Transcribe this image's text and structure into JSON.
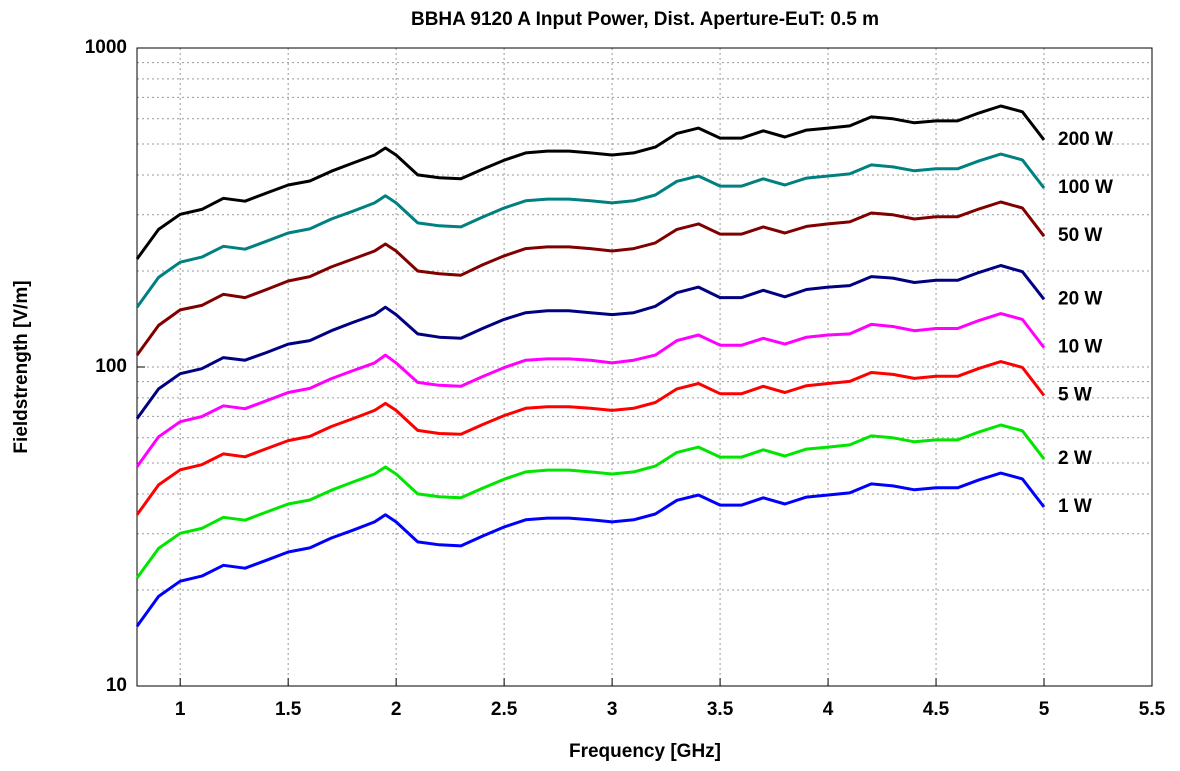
{
  "chart_data": {
    "type": "line",
    "title": "BBHA 9120 A Input Power, Dist. Aperture-EuT: 0.5 m",
    "x_label": "Frequency [GHz]",
    "y_label": "Fieldstrength [V/m]",
    "log_y": true,
    "grid": true,
    "minor_grid": true,
    "legend": "end-of-line",
    "xlim": [
      0.8,
      5.5
    ],
    "xticks": [
      1,
      1.5,
      2,
      2.5,
      3,
      3.5,
      4,
      4.5,
      5,
      5.5
    ],
    "ylim": [
      10,
      1000
    ],
    "yticks": [
      10,
      100,
      1000
    ],
    "x": [
      0.8,
      0.9,
      1,
      1.1,
      1.2,
      1.3,
      1.4,
      1.5,
      1.6,
      1.7,
      1.8,
      1.9,
      1.95,
      2,
      2.1,
      2.2,
      2.3,
      2.4,
      2.5,
      2.6,
      2.7,
      2.8,
      2.9,
      3,
      3.1,
      3.2,
      3.3,
      3.4,
      3.5,
      3.6,
      3.7,
      3.8,
      3.9,
      4,
      4.1,
      4.2,
      4.3,
      4.4,
      4.5,
      4.6,
      4.7,
      4.8,
      4.9,
      5
    ],
    "series": [
      {
        "name": "200 W",
        "color": "#000000",
        "values": [
          218,
          270,
          301,
          312,
          338,
          331,
          351,
          372,
          383,
          411,
          436,
          462,
          486,
          462,
          400,
          392,
          389,
          417,
          445,
          469,
          475,
          475,
          469,
          462,
          469,
          489,
          540,
          561,
          522,
          522,
          550,
          526,
          553,
          561,
          570,
          608,
          600,
          583,
          591,
          591,
          626,
          658,
          631,
          515
        ]
      },
      {
        "name": "100 W",
        "color": "#008080",
        "values": [
          154,
          191,
          213,
          221,
          239,
          234,
          248,
          263,
          271,
          291,
          308,
          327,
          344,
          327,
          283,
          277,
          275,
          295,
          315,
          332,
          336,
          336,
          332,
          327,
          332,
          346,
          382,
          397,
          369,
          369,
          389,
          372,
          391,
          397,
          403,
          430,
          424,
          412,
          418,
          418,
          443,
          465,
          446,
          364
        ]
      },
      {
        "name": "50 W",
        "color": "#800000",
        "values": [
          109,
          135,
          151,
          156,
          169,
          165,
          175,
          186,
          192,
          206,
          218,
          231,
          243,
          231,
          200,
          196,
          194,
          209,
          223,
          235,
          238,
          238,
          235,
          231,
          235,
          245,
          270,
          281,
          261,
          261,
          275,
          263,
          276,
          281,
          285,
          304,
          300,
          291,
          296,
          296,
          313,
          329,
          315,
          257
        ]
      },
      {
        "name": "20 W",
        "color": "#000080",
        "values": [
          68.9,
          85.4,
          95.3,
          98.8,
          107,
          105,
          111,
          118,
          121,
          130,
          138,
          146,
          154,
          146,
          127,
          124,
          123,
          132,
          141,
          148,
          150,
          150,
          148,
          146,
          148,
          155,
          171,
          178,
          165,
          165,
          174,
          166,
          175,
          178,
          180,
          192,
          190,
          184,
          187,
          187,
          198,
          208,
          199,
          163
        ]
      },
      {
        "name": "10 W",
        "color": "#ff00ff",
        "values": [
          48.7,
          60.4,
          67.4,
          69.9,
          75.6,
          74.0,
          78.4,
          83.2,
          85.7,
          92.0,
          97.4,
          103,
          109,
          103,
          89.5,
          87.6,
          87.0,
          93.3,
          99.6,
          105,
          106,
          106,
          105,
          103,
          105,
          109,
          121,
          126,
          117,
          117,
          123,
          118,
          124,
          126,
          127,
          136,
          134,
          130,
          132,
          132,
          140,
          147,
          141,
          115
        ]
      },
      {
        "name": "5 W",
        "color": "#ff0000",
        "values": [
          34.4,
          42.7,
          47.6,
          49.4,
          53.4,
          52.3,
          55.5,
          58.8,
          60.6,
          65.1,
          68.9,
          73.1,
          76.9,
          73.1,
          63.3,
          61.9,
          61.5,
          66.0,
          70.4,
          74.2,
          75.1,
          75.1,
          74.2,
          73.1,
          74.2,
          77.4,
          85.4,
          88.8,
          82.5,
          82.5,
          87.0,
          83.2,
          87.4,
          88.8,
          90.1,
          96.1,
          94.8,
          92.1,
          93.5,
          93.5,
          99.1,
          104,
          99.7,
          81.4
        ]
      },
      {
        "name": "2 W",
        "color": "#00e600",
        "values": [
          21.8,
          27.0,
          30.1,
          31.2,
          33.8,
          33.1,
          35.1,
          37.2,
          38.3,
          41.1,
          43.6,
          46.2,
          48.6,
          46.2,
          40.0,
          39.2,
          38.9,
          41.7,
          44.5,
          46.9,
          47.5,
          47.5,
          46.9,
          46.2,
          46.9,
          48.9,
          54.0,
          56.1,
          52.2,
          52.2,
          55.0,
          52.6,
          55.3,
          56.1,
          57.0,
          60.8,
          60.0,
          58.3,
          59.1,
          59.1,
          62.6,
          65.8,
          63.1,
          51.5
        ]
      },
      {
        "name": "1 W",
        "color": "#0000ff",
        "values": [
          15.4,
          19.1,
          21.3,
          22.1,
          23.9,
          23.4,
          24.8,
          26.3,
          27.1,
          29.1,
          30.8,
          32.7,
          34.4,
          32.7,
          28.3,
          27.7,
          27.5,
          29.5,
          31.5,
          33.2,
          33.6,
          33.6,
          33.2,
          32.7,
          33.2,
          34.6,
          38.2,
          39.7,
          36.9,
          36.9,
          38.9,
          37.2,
          39.1,
          39.7,
          40.3,
          43.0,
          42.4,
          41.2,
          41.8,
          41.8,
          44.3,
          46.5,
          44.6,
          36.4
        ]
      }
    ]
  }
}
